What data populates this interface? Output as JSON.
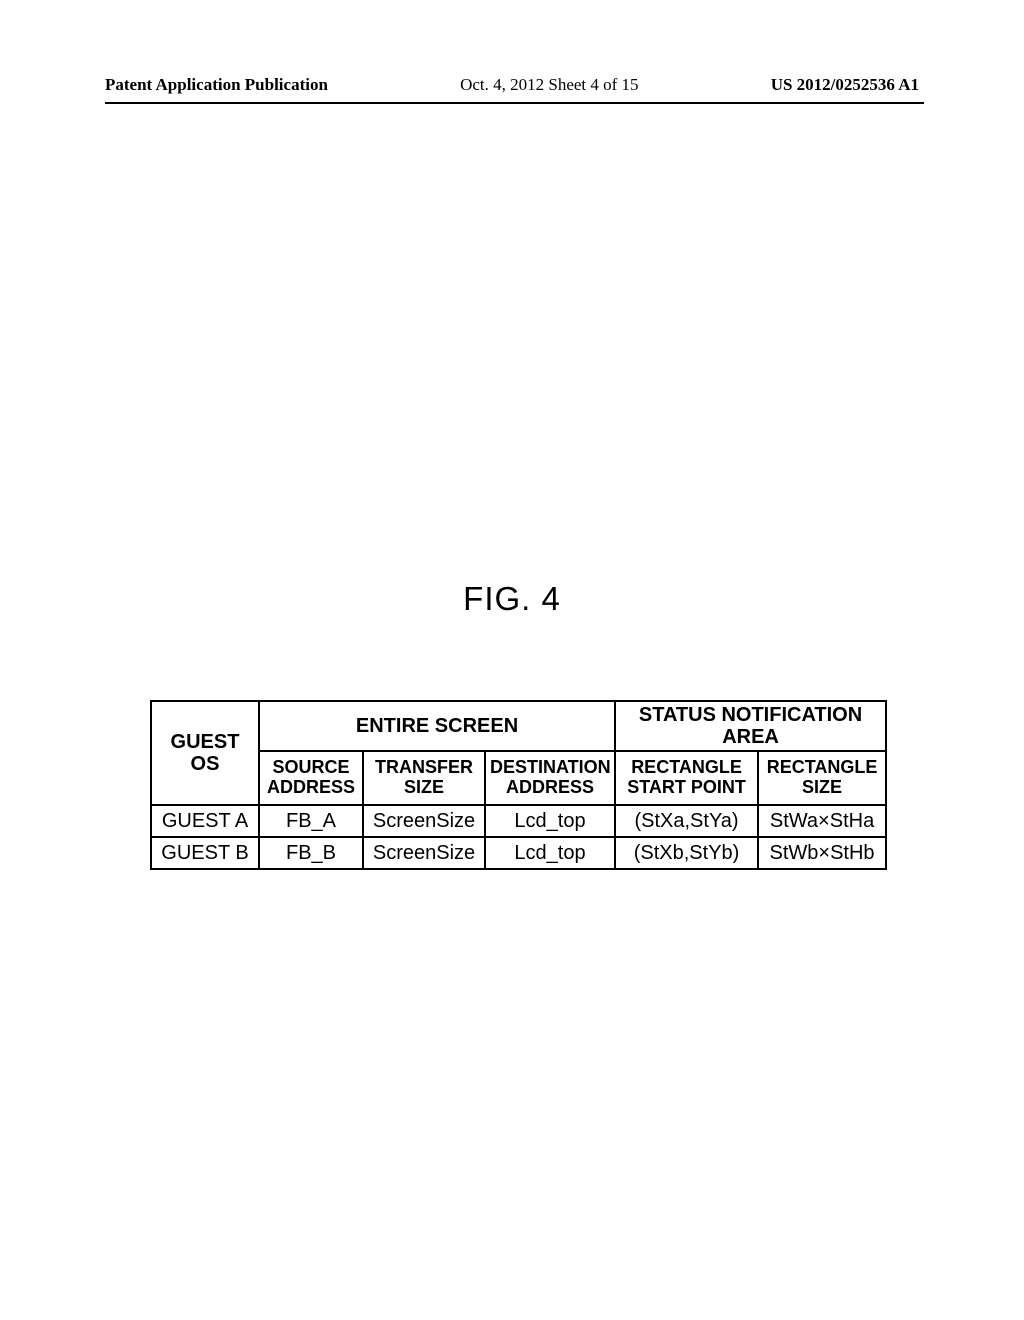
{
  "header": {
    "left": "Patent Application Publication",
    "center": "Oct. 4, 2012  Sheet 4 of 15",
    "right": "US 2012/0252536 A1"
  },
  "figure": {
    "label": "FIG. 4"
  },
  "table": {
    "headers": {
      "guest_os": "GUEST OS",
      "entire_screen": "ENTIRE SCREEN",
      "status_area": "STATUS NOTIFICATION AREA",
      "source_address": "SOURCE\nADDRESS",
      "transfer_size": "TRANSFER\nSIZE",
      "destination_address": "DESTINATION\nADDRESS",
      "rectangle_start": "RECTANGLE\nSTART POINT",
      "rectangle_size": "RECTANGLE\nSIZE"
    },
    "rows": [
      {
        "guest": "GUEST A",
        "src": "FB_A",
        "xfer": "ScreenSize",
        "dest": "Lcd_top",
        "rstart": "(StXa,StYa)",
        "rsize": "StWa×StHa"
      },
      {
        "guest": "GUEST B",
        "src": "FB_B",
        "xfer": "ScreenSize",
        "dest": "Lcd_top",
        "rstart": "(StXb,StYb)",
        "rsize": "StWb×StHb"
      }
    ]
  }
}
